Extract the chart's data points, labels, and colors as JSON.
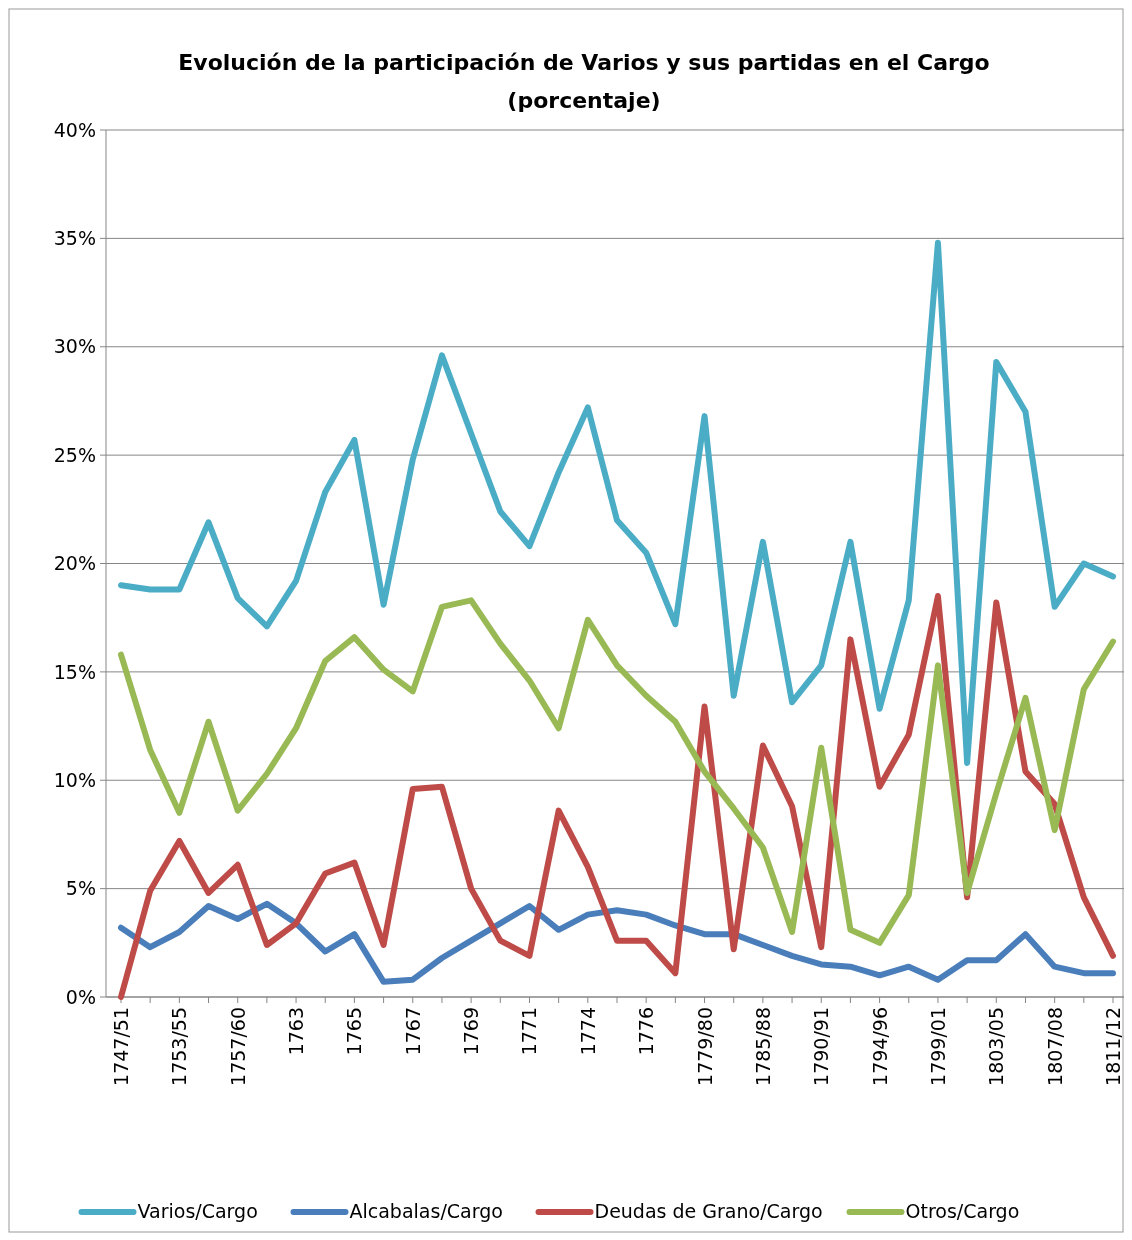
{
  "chart_data": {
    "type": "line",
    "title": "Evolución de la participación de Varios y sus partidas en el Cargo",
    "subtitle": "(porcentaje)",
    "categories": [
      "1747/51",
      null,
      "1753/55",
      null,
      "1757/60",
      null,
      "1763",
      null,
      "1765",
      null,
      "1767",
      null,
      "1769",
      null,
      "1771",
      null,
      "1774",
      null,
      "1776",
      null,
      "1779/80",
      null,
      "1785/88",
      null,
      "1790/91",
      null,
      "1794/96",
      null,
      "1799/01",
      null,
      "1803/05",
      null,
      "1807/08",
      null,
      "1811/12"
    ],
    "series": [
      {
        "name": "Varios/Cargo",
        "color": "#4bacc6",
        "values": [
          19.0,
          18.8,
          18.8,
          21.9,
          18.4,
          17.1,
          19.2,
          23.3,
          25.7,
          18.1,
          24.8,
          29.6,
          26.0,
          22.4,
          20.8,
          24.2,
          27.2,
          22.0,
          20.5,
          17.2,
          26.8,
          13.9,
          21.0,
          13.6,
          15.3,
          21.0,
          13.3,
          18.3,
          34.8,
          10.8,
          29.3,
          27.0,
          18.0,
          20.0,
          19.4
        ]
      },
      {
        "name": "Alcabalas/Cargo",
        "color": "#4a7ebb",
        "values": [
          3.2,
          2.3,
          3.0,
          4.2,
          3.6,
          4.3,
          3.4,
          2.1,
          2.9,
          0.7,
          0.8,
          1.8,
          2.6,
          3.4,
          4.2,
          3.1,
          3.8,
          4.0,
          3.8,
          3.3,
          2.9,
          2.9,
          2.4,
          1.9,
          1.5,
          1.4,
          1.0,
          1.4,
          0.8,
          1.7,
          1.7,
          2.9,
          1.4,
          1.1,
          1.1
        ]
      },
      {
        "name": "Deudas de Grano/Cargo",
        "color": "#be4b48",
        "values": [
          0.0,
          4.9,
          7.2,
          4.8,
          6.1,
          2.4,
          3.4,
          5.7,
          6.2,
          2.4,
          9.6,
          9.7,
          5.0,
          2.6,
          1.9,
          8.6,
          6.0,
          2.6,
          2.6,
          1.1,
          13.4,
          2.2,
          11.6,
          8.8,
          2.3,
          16.5,
          9.7,
          12.1,
          18.5,
          4.6,
          18.2,
          10.4,
          8.9,
          4.6,
          1.9
        ]
      },
      {
        "name": "Otros/Cargo",
        "color": "#98b954",
        "values": [
          15.8,
          11.4,
          8.5,
          12.7,
          8.6,
          10.3,
          12.4,
          15.5,
          16.6,
          15.1,
          14.1,
          18.0,
          18.3,
          16.3,
          14.6,
          12.4,
          17.4,
          15.3,
          13.9,
          12.7,
          10.4,
          8.7,
          6.9,
          3.0,
          11.5,
          3.1,
          2.5,
          4.7,
          15.3,
          4.8,
          9.4,
          13.8,
          7.7,
          14.2,
          16.4
        ]
      }
    ],
    "ylim": [
      0,
      40
    ],
    "yticks": [
      {
        "value": 0,
        "label": "0%"
      },
      {
        "value": 5,
        "label": "5%"
      },
      {
        "value": 10,
        "label": "10%"
      },
      {
        "value": 15,
        "label": "15%"
      },
      {
        "value": 20,
        "label": "20%"
      },
      {
        "value": 25,
        "label": "25%"
      },
      {
        "value": 30,
        "label": "30%"
      },
      {
        "value": 35,
        "label": "35%"
      },
      {
        "value": 40,
        "label": "40%"
      }
    ],
    "grid": "y",
    "legend": "bottom",
    "marker": "none",
    "line_style": "solid"
  }
}
